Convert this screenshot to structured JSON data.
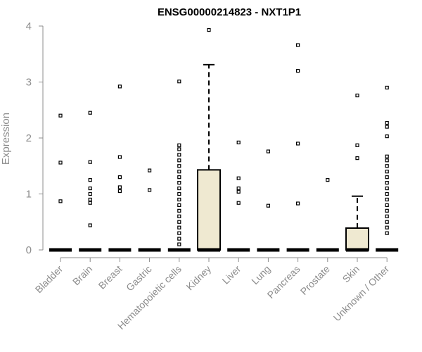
{
  "chart_data": {
    "type": "box",
    "title": "ENSG00000214823 - NXT1P1",
    "xlabel": "",
    "ylabel": "Expression",
    "ylim": [
      0,
      4
    ],
    "yticks": [
      "0",
      "1",
      "2",
      "3",
      "4"
    ],
    "box_fill": "#efe9d1",
    "categories": [
      {
        "name": "Bladder",
        "q1": 0,
        "median": 0,
        "q3": 0,
        "whisker_high": 0,
        "outliers": [
          0.87,
          1.56,
          2.4
        ]
      },
      {
        "name": "Brain",
        "q1": 0,
        "median": 0,
        "q3": 0,
        "whisker_high": 0,
        "outliers": [
          0.44,
          0.84,
          0.9,
          1.0,
          1.1,
          1.25,
          1.57,
          2.45
        ]
      },
      {
        "name": "Breast",
        "q1": 0,
        "median": 0,
        "q3": 0,
        "whisker_high": 0,
        "outliers": [
          1.05,
          1.12,
          1.3,
          1.66,
          2.92
        ]
      },
      {
        "name": "Gastric",
        "q1": 0,
        "median": 0,
        "q3": 0,
        "whisker_high": 0,
        "outliers": [
          1.07,
          1.42
        ]
      },
      {
        "name": "Hematopoietic cells",
        "q1": 0,
        "median": 0,
        "q3": 0,
        "whisker_high": 0,
        "outliers": [
          0.1,
          0.2,
          0.3,
          0.4,
          0.5,
          0.6,
          0.7,
          0.8,
          0.9,
          1.0,
          1.1,
          1.2,
          1.3,
          1.4,
          1.5,
          1.6,
          1.7,
          1.8,
          1.87,
          3.01
        ]
      },
      {
        "name": "Kidney",
        "q1": 0,
        "median": 0,
        "q3": 1.43,
        "whisker_high": 3.31,
        "outliers": [
          3.93
        ]
      },
      {
        "name": "Liver",
        "q1": 0,
        "median": 0,
        "q3": 0,
        "whisker_high": 0,
        "outliers": [
          0.84,
          1.04,
          1.1,
          1.28,
          1.92
        ]
      },
      {
        "name": "Lung",
        "q1": 0,
        "median": 0,
        "q3": 0,
        "whisker_high": 0,
        "outliers": [
          0.79,
          1.76
        ]
      },
      {
        "name": "Pancreas",
        "q1": 0,
        "median": 0,
        "q3": 0,
        "whisker_high": 0,
        "outliers": [
          0.83,
          1.9,
          3.2,
          3.66
        ]
      },
      {
        "name": "Prostate",
        "q1": 0,
        "median": 0,
        "q3": 0,
        "whisker_high": 0,
        "outliers": [
          1.25
        ]
      },
      {
        "name": "Skin",
        "q1": 0,
        "median": 0,
        "q3": 0.39,
        "whisker_high": 0.96,
        "outliers": [
          1.64,
          1.87,
          2.76
        ]
      },
      {
        "name": "Unknown / Other",
        "q1": 0,
        "median": 0,
        "q3": 0,
        "whisker_high": 0,
        "outliers": [
          0.3,
          0.4,
          0.5,
          0.6,
          0.7,
          0.8,
          0.9,
          1.0,
          1.1,
          1.2,
          1.3,
          1.4,
          1.5,
          1.6,
          1.67,
          2.03,
          2.2,
          2.27,
          2.9
        ]
      }
    ]
  }
}
